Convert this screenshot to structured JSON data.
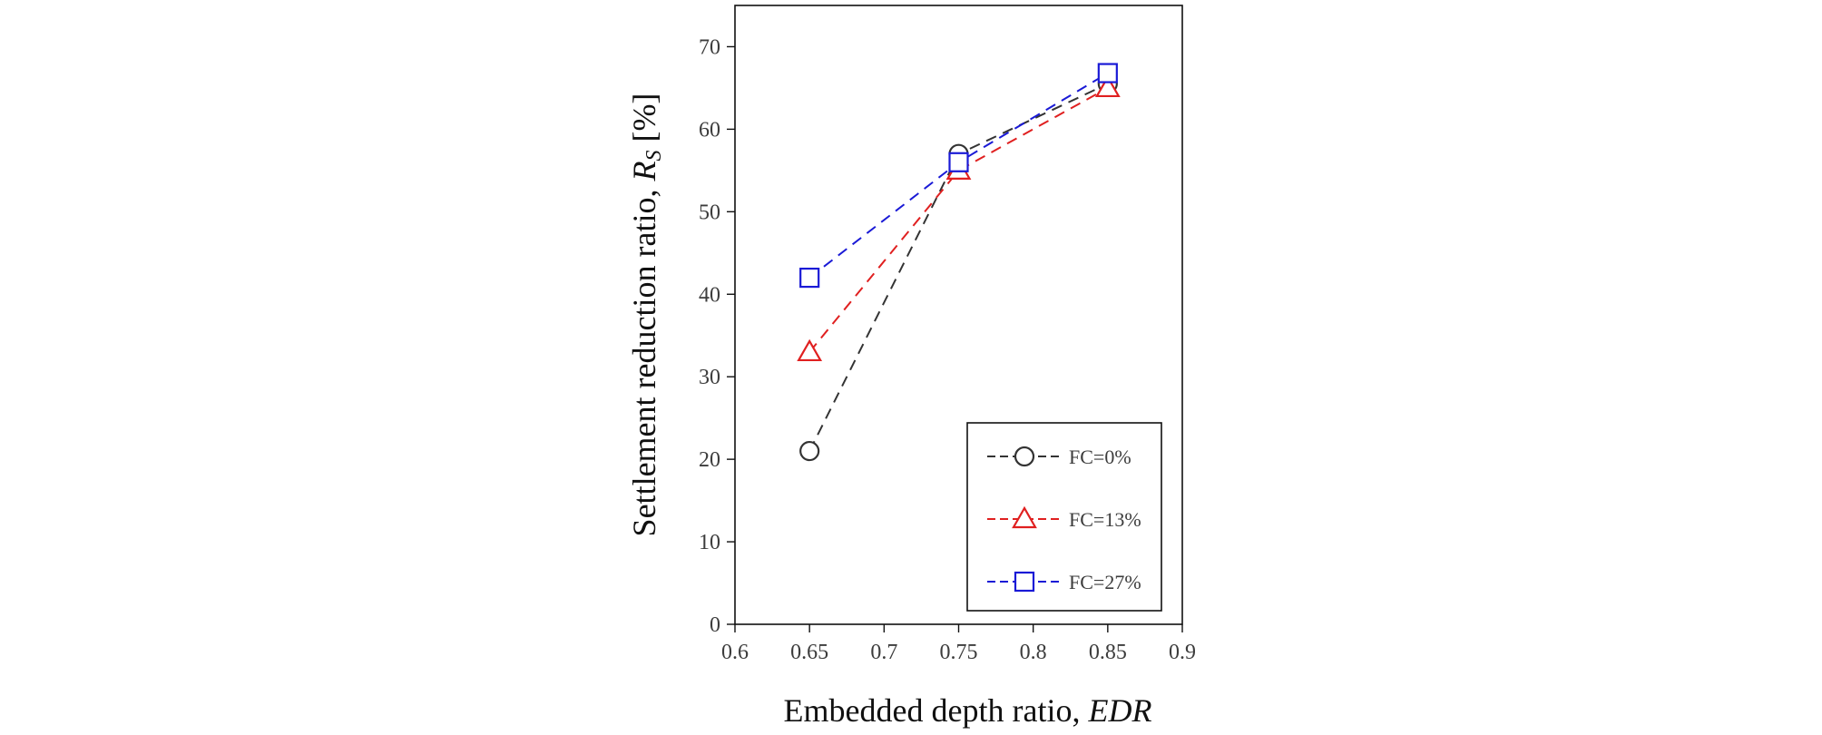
{
  "chart_data": {
    "type": "line",
    "xlabel": {
      "prefix": "Embedded  depth ratio, ",
      "italic": "EDR"
    },
    "ylabel": {
      "prefix": "Settlement  reduction ratio, ",
      "italic": "R",
      "sub": "S",
      "suffix": " [%]"
    },
    "xlim": [
      0.6,
      0.9
    ],
    "ylim": [
      0,
      75
    ],
    "x_ticks": [
      "0.6",
      "0.65",
      "0.7",
      "0.75",
      "0.8",
      "0.85",
      "0.9"
    ],
    "y_ticks": [
      "0",
      "10",
      "20",
      "30",
      "40",
      "50",
      "60",
      "70"
    ],
    "grid": false,
    "legend_position": "bottom-right",
    "series": [
      {
        "name": "FC=0%",
        "marker": "circle",
        "color": "#333333",
        "x": [
          0.65,
          0.75,
          0.85
        ],
        "y": [
          21,
          57,
          65.5
        ]
      },
      {
        "name": "FC=13%",
        "marker": "triangle",
        "color": "#e02020",
        "x": [
          0.65,
          0.75,
          0.85
        ],
        "y": [
          33,
          55,
          65
        ]
      },
      {
        "name": "FC=27%",
        "marker": "square",
        "color": "#1a1ad6",
        "x": [
          0.65,
          0.75,
          0.85
        ],
        "y": [
          42,
          56,
          66.8
        ]
      }
    ]
  }
}
